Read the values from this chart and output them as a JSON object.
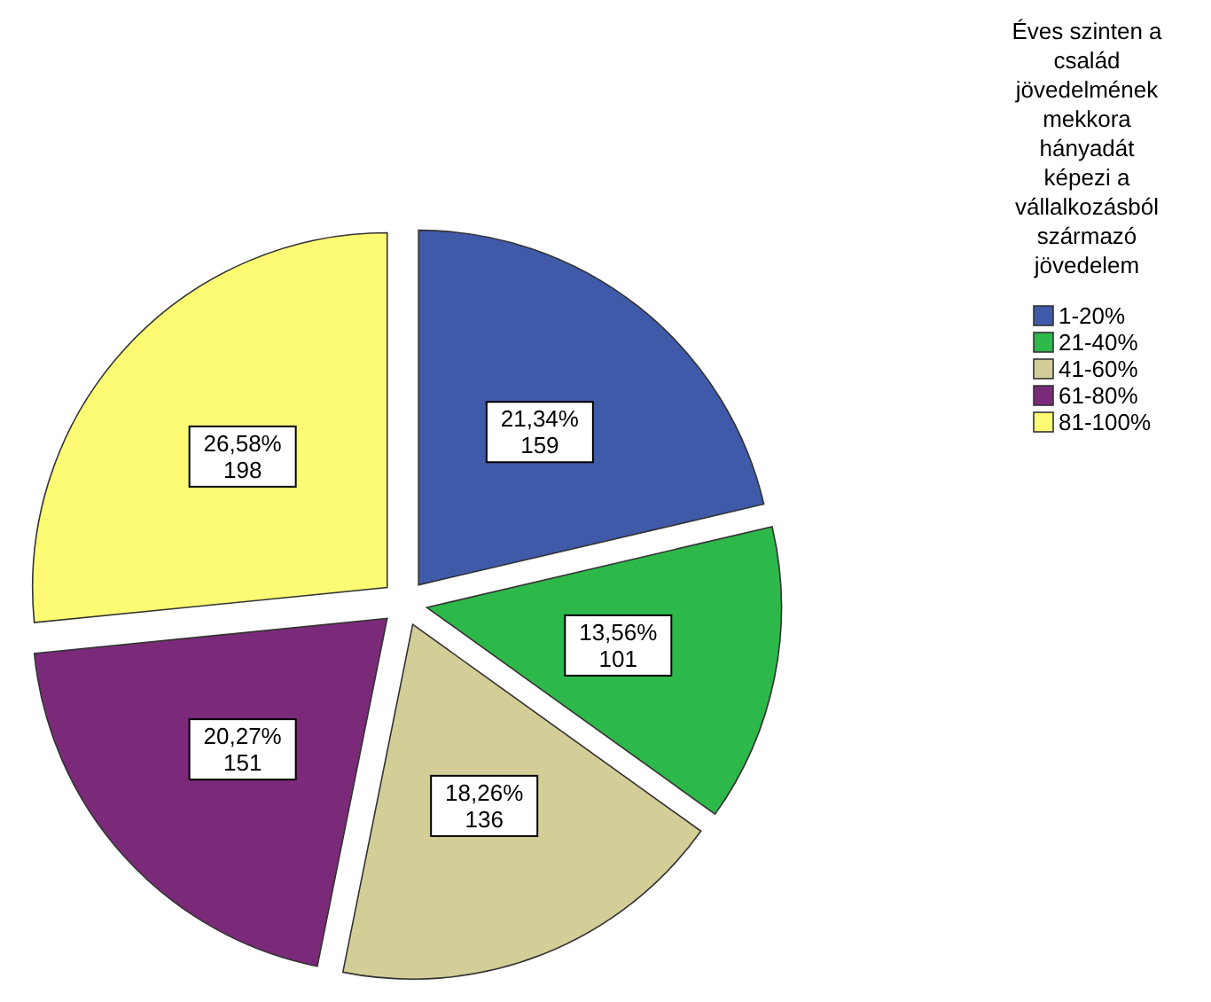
{
  "chart_data": {
    "type": "pie",
    "categories": [
      "1-20%",
      "21-40%",
      "41-60%",
      "61-80%",
      "81-100%"
    ],
    "values": [
      159,
      101,
      136,
      151,
      198
    ],
    "colors": [
      "#3f5aa8",
      "#2db84a",
      "#d3ce97",
      "#7b2a7a",
      "#fdfb73"
    ],
    "value_labels": [
      "21,34%\n159",
      "13,56%\n101",
      "18,26%\n136",
      "20,27%\n151",
      "26,58%\n198"
    ],
    "legend_title": "Éves szinten a\ncsalád\njövedelmének\nmekkora\nhányadát\nképezi a\nvállalkozásból\nszármazó\njövedelem",
    "legend": "right"
  }
}
